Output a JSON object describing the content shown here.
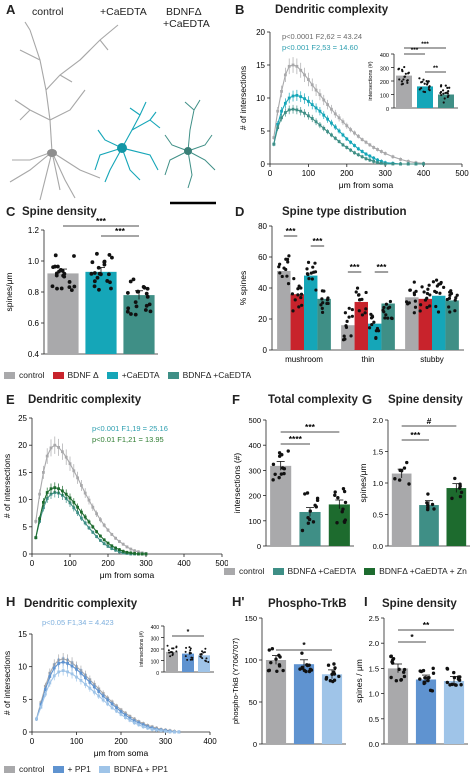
{
  "colors": {
    "control": "#a9a9ab",
    "bdnf": "#c8232c",
    "caedta": "#15a6b8",
    "bdnf_caedta": "#3f8f86",
    "zn": "#1d6b2e",
    "pp1": "#5f93d0",
    "bdnf_pp1": "#9fc4e8",
    "stat_teal": "#2e9fb0",
    "stat_green": "#2f7d32"
  },
  "panelA": {
    "label": "A",
    "neurons": [
      "control",
      "+CaEDTA",
      "BDNFΔ\n+CaEDTA"
    ],
    "neuron_l1": "BDNFΔ",
    "neuron_l2": "+CaEDTA"
  },
  "panelB": {
    "label": "B",
    "title": "Dendritic complexity",
    "stat1": "p<0.0001 F2,62 = 43.24",
    "stat2": "p<0.001 F2,53 = 14.60",
    "xlabel": "μm from soma",
    "ylabel": "# of intersections",
    "inset_ylabel": "intersections (#)"
  },
  "panelC": {
    "label": "C",
    "title": "Spine density",
    "ylabel": "spines/μm"
  },
  "panelD": {
    "label": "D",
    "title": "Spine type distribution",
    "ylabel": "% spines"
  },
  "legend1": {
    "control": "control",
    "bdnf": "BDNF Δ",
    "caedta": "+CaEDTA",
    "bdnf_caedta": "BDNFΔ +CaEDTA"
  },
  "panelE": {
    "label": "E",
    "title": "Dendritic complexity",
    "stat1": "p<0.001 F1,19 = 25.16",
    "stat2": "p<0.01 F1,21 = 13.95",
    "xlabel": "μm from soma",
    "ylabel": "# of intersections"
  },
  "panelF": {
    "label": "F",
    "title": "Total complexity",
    "ylabel": "intersections (#)"
  },
  "panelG": {
    "label": "G",
    "title": "Spine density",
    "ylabel": "spines/μm"
  },
  "legend2": {
    "control": "control",
    "bdnf_caedta": "BDNFΔ +CaEDTA",
    "zn": "BDNFΔ +CaEDTA + Zn"
  },
  "panelH": {
    "label": "H",
    "title": "Dendritic complexity",
    "stat": "p<0.05 F1,34 = 4.423",
    "xlabel": "μm from soma",
    "ylabel": "# of intersections",
    "inset_ylabel": "intersections (#)"
  },
  "panelH2": {
    "label": "H'",
    "title": "Phospho-TrkB",
    "ylabel": "phospho-TrkB (Y706/707)"
  },
  "panelI": {
    "label": "I",
    "title": "Spine density",
    "ylabel": "spines / μm"
  },
  "legend3": {
    "control": "control",
    "pp1": "+ PP1",
    "bdnf_pp1": "BDNFΔ + PP1"
  },
  "chart_data": [
    {
      "id": "B",
      "type": "line",
      "title": "Dendritic complexity",
      "xlabel": "μm from soma",
      "ylabel": "# of intersections",
      "xlim": [
        0,
        500
      ],
      "ylim": [
        0,
        20
      ],
      "xticks": [
        0,
        100,
        200,
        300,
        400,
        500
      ],
      "yticks": [
        0,
        5,
        10,
        15,
        20
      ],
      "x": [
        10,
        20,
        30,
        40,
        50,
        60,
        70,
        80,
        90,
        100,
        110,
        120,
        130,
        140,
        150,
        160,
        170,
        180,
        190,
        200,
        210,
        220,
        230,
        240,
        250,
        260,
        270,
        280,
        290,
        300,
        320,
        340,
        360,
        380,
        400
      ],
      "series": [
        {
          "name": "control",
          "values": [
            4,
            8,
            11,
            13.5,
            14.8,
            15,
            14.8,
            14.2,
            13.5,
            12.8,
            12,
            11.2,
            10.5,
            9.7,
            9,
            8.3,
            7.6,
            7,
            6.4,
            5.8,
            5.2,
            4.7,
            4.2,
            3.7,
            3.3,
            2.9,
            2.5,
            2.2,
            1.9,
            1.6,
            1.1,
            0.7,
            0.4,
            0.2,
            0.1
          ]
        },
        {
          "name": "+CaEDTA",
          "values": [
            3,
            6,
            8,
            9.2,
            10,
            10.3,
            10.4,
            10.2,
            9.9,
            9.5,
            9,
            8.5,
            8,
            7.4,
            6.8,
            6.2,
            5.6,
            5,
            4.4,
            3.8,
            3.3,
            2.8,
            2.3,
            1.9,
            1.5,
            1.2,
            0.9,
            0.6,
            0.4,
            0.2,
            0.1,
            0,
            0,
            0,
            0
          ]
        },
        {
          "name": "BDNFΔ +CaEDTA",
          "values": [
            3,
            5.5,
            7,
            7.8,
            8.2,
            8.3,
            8.2,
            8,
            7.7,
            7.3,
            6.9,
            6.4,
            5.9,
            5.4,
            4.9,
            4.4,
            3.9,
            3.4,
            2.9,
            2.5,
            2.1,
            1.7,
            1.4,
            1.1,
            0.8,
            0.6,
            0.4,
            0.2,
            0.1,
            0,
            0,
            0,
            0,
            0,
            0
          ]
        }
      ],
      "inset": {
        "ylabel": "intersections (#)",
        "ylim": [
          0,
          400
        ],
        "yticks": [
          0,
          100,
          200,
          300,
          400
        ],
        "means": [
          240,
          160,
          100
        ],
        "sig": [
          "***",
          "***",
          "**"
        ]
      }
    },
    {
      "id": "C",
      "type": "bar",
      "title": "Spine density",
      "ylabel": "spines/μm",
      "ylim": [
        0.4,
        1.2
      ],
      "yticks": [
        0.4,
        0.6,
        0.8,
        1.0,
        1.2
      ],
      "categories": [
        "control",
        "+CaEDTA",
        "BDNFΔ +CaEDTA"
      ],
      "values": [
        0.92,
        0.93,
        0.78
      ],
      "sig": [
        "***",
        "***"
      ]
    },
    {
      "id": "D",
      "type": "bar",
      "title": "Spine type distribution",
      "ylabel": "% spines",
      "ylim": [
        0,
        80
      ],
      "yticks": [
        0,
        20,
        40,
        60,
        80
      ],
      "categories": [
        "mushroom",
        "thin",
        "stubby"
      ],
      "series": [
        {
          "name": "control",
          "values": [
            51,
            16,
            34
          ]
        },
        {
          "name": "BDNF Δ",
          "values": [
            36,
            31,
            33
          ]
        },
        {
          "name": "+CaEDTA",
          "values": [
            48,
            17,
            35
          ]
        },
        {
          "name": "BDNFΔ +CaEDTA",
          "values": [
            33,
            30,
            32
          ]
        }
      ],
      "sig": [
        "***",
        "***",
        "***",
        "***"
      ]
    },
    {
      "id": "E",
      "type": "line",
      "title": "Dendritic complexity",
      "xlabel": "μm from soma",
      "ylabel": "# of intersections",
      "xlim": [
        0,
        500
      ],
      "ylim": [
        0,
        25
      ],
      "xticks": [
        0,
        100,
        200,
        300,
        400,
        500
      ],
      "yticks": [
        0,
        5,
        10,
        15,
        20,
        25
      ],
      "x": [
        10,
        20,
        30,
        40,
        50,
        60,
        70,
        80,
        90,
        100,
        110,
        120,
        130,
        140,
        150,
        160,
        170,
        180,
        190,
        200,
        210,
        220,
        230,
        240,
        250,
        260,
        270,
        280,
        290,
        300
      ],
      "series": [
        {
          "name": "control",
          "values": [
            6,
            11,
            15,
            18,
            19.5,
            20,
            19.6,
            18.8,
            17.8,
            16.6,
            15.3,
            14,
            12.6,
            11.2,
            9.9,
            8.6,
            7.4,
            6.3,
            5.3,
            4.4,
            3.6,
            2.9,
            2.3,
            1.8,
            1.3,
            0.9,
            0.6,
            0.4,
            0.2,
            0.1
          ]
        },
        {
          "name": "BDNFΔ +CaEDTA",
          "values": [
            3,
            6,
            8.5,
            10.2,
            11,
            11.3,
            11.2,
            10.8,
            10.2,
            9.4,
            8.5,
            7.6,
            6.6,
            5.7,
            4.8,
            4,
            3.2,
            2.5,
            1.9,
            1.4,
            1,
            0.7,
            0.4,
            0.2,
            0.1,
            0,
            0,
            0,
            0,
            0
          ]
        },
        {
          "name": "BDNFΔ +CaEDTA + Zn",
          "values": [
            3,
            6.5,
            9.5,
            11.3,
            12,
            12.2,
            12,
            11.6,
            11,
            10.3,
            9.5,
            8.6,
            7.7,
            6.8,
            5.9,
            5,
            4.1,
            3.3,
            2.6,
            2,
            1.5,
            1.1,
            0.8,
            0.5,
            0.3,
            0.2,
            0.1,
            0,
            0,
            0
          ]
        }
      ]
    },
    {
      "id": "F",
      "type": "bar",
      "title": "Total complexity",
      "ylabel": "intersections (#)",
      "ylim": [
        0,
        500
      ],
      "yticks": [
        0,
        100,
        200,
        300,
        400,
        500
      ],
      "categories": [
        "control",
        "BDNFΔ +CaEDTA",
        "BDNFΔ +CaEDTA + Zn"
      ],
      "values": [
        318,
        135,
        165
      ],
      "sig": [
        "****",
        "***"
      ]
    },
    {
      "id": "G",
      "type": "bar",
      "title": "Spine density",
      "ylabel": "spines/μm",
      "ylim": [
        0,
        2.0
      ],
      "yticks": [
        0.0,
        0.5,
        1.0,
        1.5,
        2.0
      ],
      "categories": [
        "control",
        "BDNFΔ +CaEDTA",
        "BDNFΔ +CaEDTA + Zn"
      ],
      "values": [
        1.15,
        0.65,
        0.92
      ],
      "sig": [
        "***",
        "#"
      ]
    },
    {
      "id": "H",
      "type": "line",
      "title": "Dendritic complexity",
      "xlabel": "μm from soma",
      "ylabel": "# of intersections",
      "xlim": [
        0,
        400
      ],
      "ylim": [
        0,
        15
      ],
      "xticks": [
        0,
        100,
        200,
        300,
        400
      ],
      "yticks": [
        0,
        5,
        10,
        15
      ],
      "x": [
        10,
        20,
        30,
        40,
        50,
        60,
        70,
        80,
        90,
        100,
        110,
        120,
        130,
        140,
        150,
        160,
        170,
        180,
        190,
        200,
        210,
        220,
        230,
        240,
        250,
        260,
        270,
        280,
        290,
        300,
        310,
        320,
        330
      ],
      "series": [
        {
          "name": "control",
          "values": [
            2,
            4.5,
            7,
            9,
            10.3,
            11,
            11.2,
            11,
            10.6,
            10,
            9.4,
            8.7,
            8,
            7.3,
            6.6,
            5.9,
            5.2,
            4.6,
            4,
            3.4,
            2.9,
            2.4,
            2,
            1.6,
            1.3,
            1,
            0.8,
            0.6,
            0.4,
            0.3,
            0.2,
            0.1,
            0
          ]
        },
        {
          "name": "+ PP1",
          "values": [
            2,
            4.2,
            6.5,
            8.5,
            9.8,
            10.5,
            10.7,
            10.5,
            10.1,
            9.6,
            9,
            8.3,
            7.6,
            6.9,
            6.2,
            5.5,
            4.9,
            4.3,
            3.7,
            3.1,
            2.6,
            2.1,
            1.7,
            1.4,
            1.1,
            0.8,
            0.6,
            0.4,
            0.3,
            0.2,
            0.1,
            0,
            0
          ]
        },
        {
          "name": "BDNFΔ + PP1",
          "values": [
            2,
            3.8,
            5.8,
            7.5,
            8.6,
            9.2,
            9.4,
            9.2,
            8.9,
            8.4,
            7.9,
            7.3,
            6.7,
            6.1,
            5.5,
            4.9,
            4.3,
            3.7,
            3.2,
            2.7,
            2.2,
            1.8,
            1.4,
            1.1,
            0.8,
            0.6,
            0.4,
            0.3,
            0.2,
            0.1,
            0,
            0,
            0
          ]
        }
      ],
      "inset": {
        "ylabel": "intersections (#)",
        "ylim": [
          0,
          400
        ],
        "yticks": [
          0,
          100,
          200,
          300,
          400
        ],
        "means": [
          175,
          160,
          145
        ],
        "sig": [
          "*"
        ]
      }
    },
    {
      "id": "H'",
      "type": "bar",
      "title": "Phospho-TrkB",
      "ylabel": "phospho-TrkB (Y706/707)",
      "ylim": [
        0,
        150
      ],
      "yticks": [
        0,
        50,
        100,
        150
      ],
      "categories": [
        "control",
        "+ PP1",
        "BDNFΔ + PP1"
      ],
      "values": [
        100,
        95,
        83
      ],
      "sig": [
        "*"
      ]
    },
    {
      "id": "I",
      "type": "bar",
      "title": "Spine density",
      "ylabel": "spines / μm",
      "ylim": [
        0,
        2.5
      ],
      "yticks": [
        0.0,
        0.5,
        1.0,
        1.5,
        2.0,
        2.5
      ],
      "categories": [
        "control",
        "+ PP1",
        "BDNFΔ + PP1"
      ],
      "values": [
        1.5,
        1.28,
        1.25
      ],
      "sig": [
        "*",
        "**"
      ]
    }
  ]
}
